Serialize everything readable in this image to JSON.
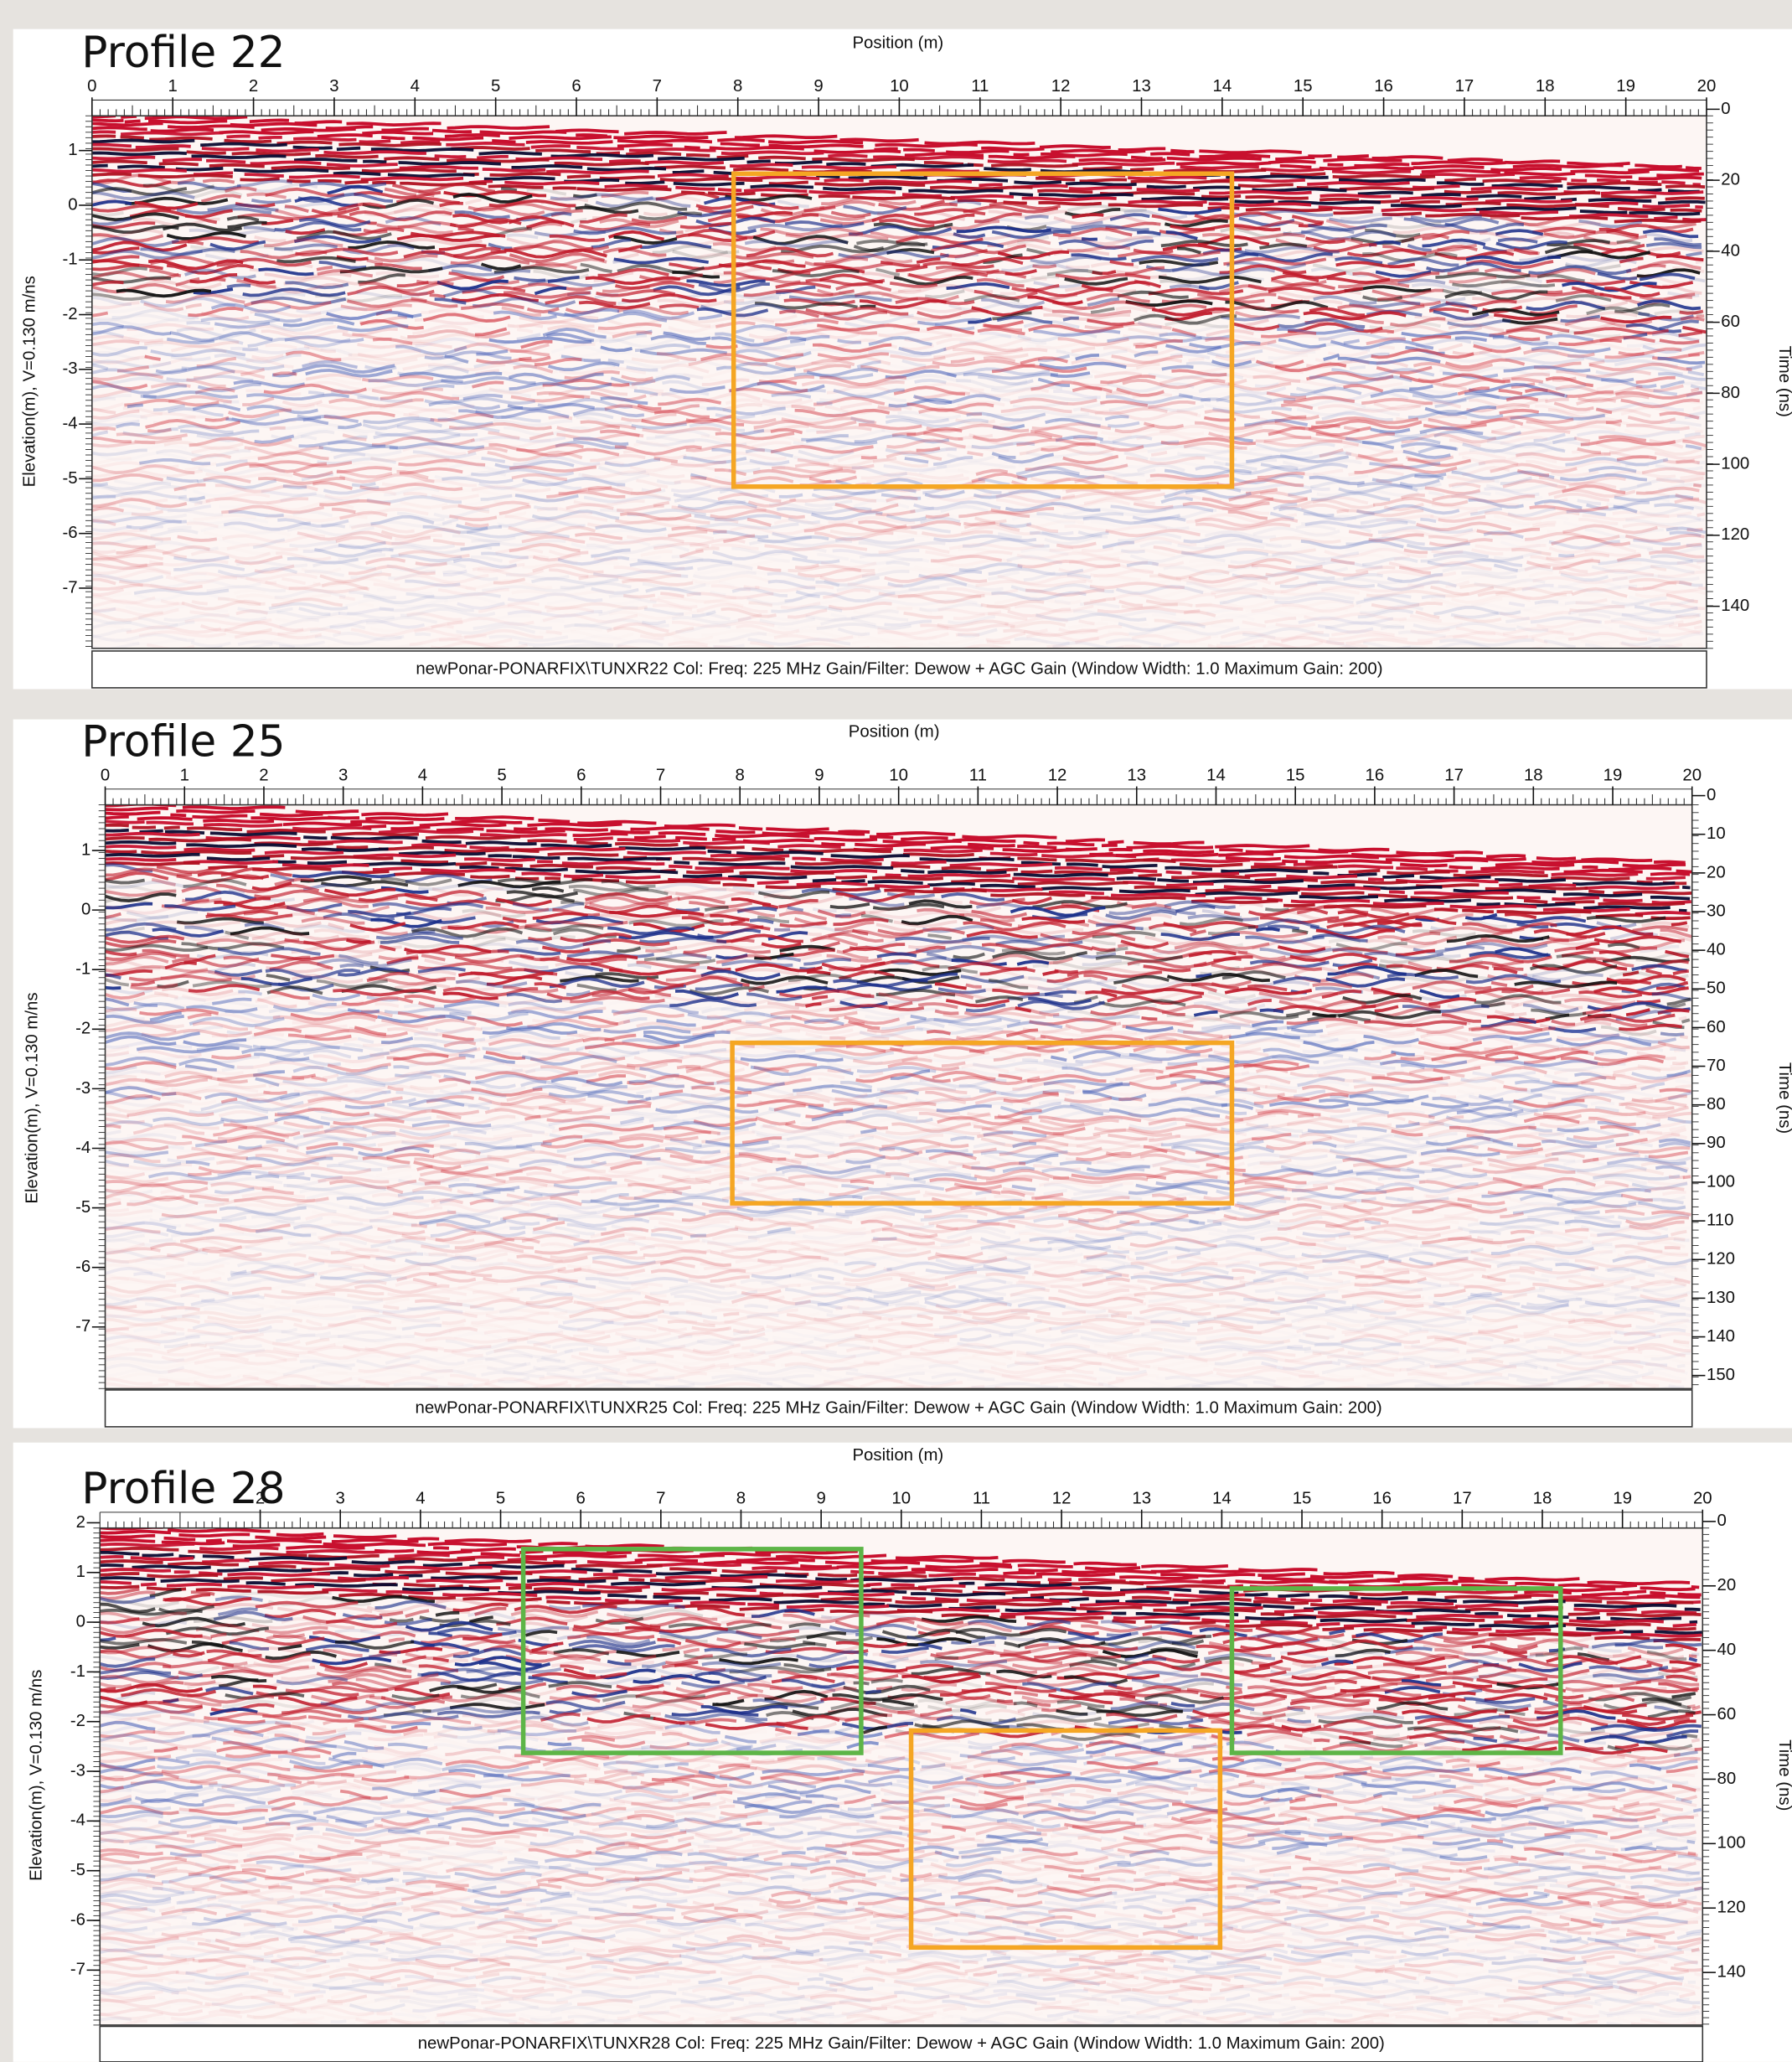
{
  "panels": [
    {
      "title": "Profile 22",
      "x_axis_label": "Position (m)",
      "xticks": [
        0,
        1,
        2,
        3,
        4,
        5,
        6,
        7,
        8,
        9,
        10,
        11,
        12,
        13,
        14,
        15,
        16,
        17,
        18,
        19,
        20
      ],
      "yticks_left": [
        1,
        0,
        -1,
        -2,
        -3,
        -4,
        -5,
        -6,
        -7
      ],
      "y_label": "Elevation(m), V=0.130 m/ns",
      "yticks_right": [
        0,
        20,
        40,
        60,
        80,
        100,
        120,
        140
      ],
      "y2_label": "Time (ns)",
      "caption": "newPonar-PONARFIX\\TUNXR22  Col:  Freq: 225 MHz Gain/Filter: Dewow + AGC Gain (Window Width: 1.0 Maximum Gain: 200)"
    },
    {
      "title": "Profile 25",
      "x_axis_label": "Position (m)",
      "xticks": [
        0,
        1,
        2,
        3,
        4,
        5,
        6,
        7,
        8,
        9,
        10,
        11,
        12,
        13,
        14,
        15,
        16,
        17,
        18,
        19,
        20
      ],
      "yticks_left": [
        1,
        0,
        -1,
        -2,
        -3,
        -4,
        -5,
        -6,
        -7
      ],
      "y_label": "Elevation(m), V=0.130 m/ns",
      "yticks_right": [
        0,
        10,
        20,
        30,
        40,
        50,
        60,
        70,
        80,
        90,
        100,
        110,
        120,
        130,
        140,
        150
      ],
      "y2_label": "Time (ns)",
      "caption": "newPonar-PONARFIX\\TUNXR25  Col:  Freq: 225 MHz Gain/Filter: Dewow + AGC Gain (Window Width: 1.0 Maximum Gain: 200)"
    },
    {
      "title": "Profile 28",
      "x_axis_label": "Position (m)",
      "xticks": [
        2,
        3,
        4,
        5,
        6,
        7,
        8,
        9,
        10,
        11,
        12,
        13,
        14,
        15,
        16,
        17,
        18,
        19,
        20
      ],
      "yticks_left": [
        2,
        1,
        0,
        -1,
        -2,
        -3,
        -4,
        -5,
        -6,
        -7
      ],
      "y_label": "Elevation(m), V=0.130 m/ns",
      "yticks_right": [
        0,
        20,
        40,
        60,
        80,
        100,
        120,
        140
      ],
      "y2_label": "Time (ns)",
      "caption": "newPonar-PONARFIX\\TUNXR28  Col:  Freq: 225 MHz Gain/Filter: Dewow + AGC Gain (Window Width: 1.0 Maximum Gain: 200)"
    }
  ]
}
